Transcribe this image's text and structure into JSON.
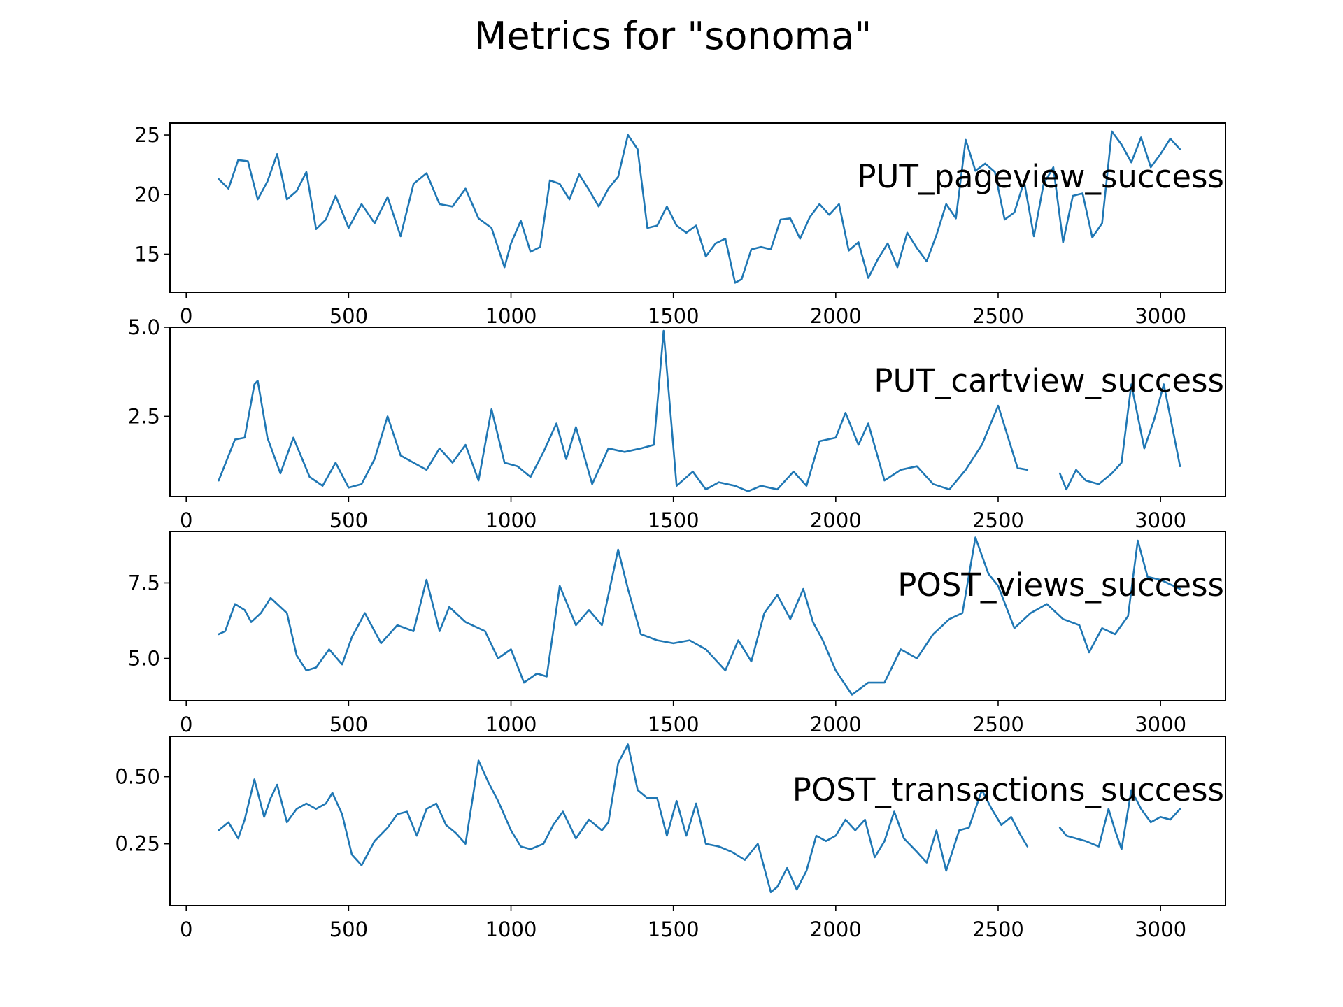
{
  "title": "Metrics for \"sonoma\"",
  "colors": {
    "line": "#1f77b4",
    "axes": "#000000",
    "background": "#ffffff"
  },
  "chart_data": [
    {
      "type": "line",
      "label": "PUT_pageview_success",
      "xlim": [
        -50,
        3200
      ],
      "ylim": [
        11.8,
        26.0
      ],
      "xticks": [
        0,
        500,
        1000,
        1500,
        2000,
        2500,
        3000
      ],
      "yticks": [
        15,
        20,
        25
      ],
      "ytick_labels": [
        "15",
        "20",
        "25"
      ],
      "grid": false,
      "series": [
        {
          "segments": [
            {
              "x": [
                100,
                130,
                160,
                190,
                220,
                250,
                280,
                310,
                340,
                370,
                400,
                430,
                460,
                500,
                540,
                580,
                620,
                660,
                700,
                740,
                780,
                820,
                860,
                900,
                940,
                980,
                1000,
                1030,
                1060,
                1090,
                1120,
                1150,
                1180,
                1210,
                1240,
                1270,
                1300,
                1330,
                1360,
                1390,
                1420,
                1450,
                1480,
                1510,
                1540,
                1570,
                1600,
                1630,
                1660,
                1690,
                1710,
                1740,
                1770,
                1800,
                1830,
                1860,
                1890,
                1920,
                1950,
                1980,
                2010,
                2040,
                2070,
                2100,
                2130,
                2160,
                2190,
                2220,
                2250,
                2280,
                2310,
                2340,
                2370,
                2400,
                2430,
                2460,
                2490,
                2520,
                2550,
                2580,
                2610,
                2640,
                2670,
                2700,
                2730,
                2760,
                2790,
                2820,
                2850,
                2880,
                2910,
                2940,
                2970,
                3000,
                3030,
                3060
              ],
              "y": [
                21.3,
                20.5,
                22.9,
                22.8,
                19.6,
                21.1,
                23.4,
                19.6,
                20.3,
                21.9,
                17.1,
                17.9,
                19.9,
                17.2,
                19.2,
                17.6,
                19.8,
                16.5,
                20.9,
                21.8,
                19.2,
                19.0,
                20.5,
                18.0,
                17.2,
                13.9,
                15.9,
                17.8,
                15.2,
                15.6,
                21.2,
                20.9,
                19.6,
                21.7,
                20.4,
                19.0,
                20.5,
                21.5,
                25.0,
                23.8,
                17.2,
                17.4,
                19.0,
                17.4,
                16.8,
                17.4,
                14.8,
                15.9,
                16.3,
                12.6,
                12.9,
                15.4,
                15.6,
                15.4,
                17.9,
                18.0,
                16.3,
                18.1,
                19.2,
                18.3,
                19.2,
                15.3,
                16.0,
                13.0,
                14.6,
                15.9,
                13.9,
                16.8,
                15.5,
                14.4,
                16.6,
                19.2,
                18.0,
                24.6,
                22.0,
                22.6,
                21.9,
                17.9,
                18.5,
                21.1,
                16.5,
                20.9,
                22.3,
                16.0,
                19.9,
                20.1,
                16.4,
                17.6,
                25.3,
                24.2,
                22.7,
                24.8,
                22.3,
                23.4,
                24.7,
                23.8
              ]
            }
          ]
        }
      ]
    },
    {
      "type": "line",
      "label": "PUT_cartview_success",
      "xlim": [
        -50,
        3200
      ],
      "ylim": [
        0.25,
        5.0
      ],
      "xticks": [
        0,
        500,
        1000,
        1500,
        2000,
        2500,
        3000
      ],
      "yticks": [
        2.5,
        5.0
      ],
      "ytick_labels": [
        "2.5",
        "5.0"
      ],
      "grid": false,
      "series": [
        {
          "segments": [
            {
              "x": [
                100,
                150,
                180,
                210,
                220,
                250,
                290,
                330,
                380,
                420,
                460,
                500,
                540,
                580,
                620,
                660,
                700,
                740,
                780,
                820,
                860,
                900,
                940,
                980,
                1020,
                1060,
                1100,
                1140,
                1170,
                1200,
                1250,
                1300,
                1350,
                1400,
                1440,
                1470,
                1510,
                1560,
                1600,
                1640,
                1690,
                1730,
                1770,
                1820,
                1870,
                1910,
                1950,
                2000,
                2030,
                2070,
                2100,
                2150,
                2200,
                2250,
                2300,
                2350,
                2400,
                2450,
                2500,
                2560,
                2590
              ],
              "y": [
                0.7,
                1.85,
                1.9,
                3.4,
                3.5,
                1.9,
                0.9,
                1.9,
                0.8,
                0.55,
                1.2,
                0.5,
                0.6,
                1.3,
                2.5,
                1.4,
                1.2,
                1.0,
                1.6,
                1.2,
                1.7,
                0.7,
                2.7,
                1.2,
                1.1,
                0.8,
                1.5,
                2.3,
                1.3,
                2.2,
                0.6,
                1.6,
                1.5,
                1.6,
                1.7,
                4.9,
                0.55,
                0.95,
                0.45,
                0.65,
                0.55,
                0.4,
                0.55,
                0.45,
                0.95,
                0.55,
                1.8,
                1.9,
                2.6,
                1.7,
                2.3,
                0.7,
                1.0,
                1.1,
                0.6,
                0.45,
                1.0,
                1.7,
                2.8,
                1.05,
                1.0
              ]
            },
            {
              "x": [
                2690,
                2710,
                2740,
                2770,
                2810,
                2850,
                2880,
                2910,
                2950,
                2980,
                3010,
                3060
              ],
              "y": [
                0.9,
                0.45,
                1.0,
                0.7,
                0.6,
                0.9,
                1.2,
                3.4,
                1.6,
                2.4,
                3.4,
                1.1
              ]
            }
          ]
        }
      ]
    },
    {
      "type": "line",
      "label": "POST_views_success",
      "xlim": [
        -50,
        3200
      ],
      "ylim": [
        3.6,
        9.2
      ],
      "xticks": [
        0,
        500,
        1000,
        1500,
        2000,
        2500,
        3000
      ],
      "yticks": [
        5.0,
        7.5
      ],
      "ytick_labels": [
        "5.0",
        "7.5"
      ],
      "grid": false,
      "series": [
        {
          "segments": [
            {
              "x": [
                100,
                120,
                150,
                180,
                200,
                230,
                260,
                280,
                310,
                340,
                370,
                400,
                440,
                480,
                510,
                550,
                600,
                650,
                700,
                740,
                780,
                810,
                860,
                920,
                960,
                1000,
                1040,
                1080,
                1110,
                1150,
                1200,
                1240,
                1280,
                1330,
                1360,
                1400,
                1450,
                1500,
                1550,
                1600,
                1660,
                1700,
                1740,
                1780,
                1820,
                1860,
                1900,
                1930,
                1960,
                2000,
                2050,
                2100,
                2150,
                2200,
                2250,
                2300,
                2350,
                2390,
                2430,
                2470,
                2500,
                2550,
                2600,
                2650,
                2700,
                2750,
                2780,
                2820,
                2860,
                2900,
                2930,
                2960,
                3000,
                3040,
                3060
              ],
              "y": [
                5.8,
                5.9,
                6.8,
                6.6,
                6.2,
                6.5,
                7.0,
                6.8,
                6.5,
                5.1,
                4.6,
                4.7,
                5.3,
                4.8,
                5.7,
                6.5,
                5.5,
                6.1,
                5.9,
                7.6,
                5.9,
                6.7,
                6.2,
                5.9,
                5.0,
                5.3,
                4.2,
                4.5,
                4.4,
                7.4,
                6.1,
                6.6,
                6.1,
                8.6,
                7.3,
                5.8,
                5.6,
                5.5,
                5.6,
                5.3,
                4.6,
                5.6,
                4.9,
                6.5,
                7.1,
                6.3,
                7.3,
                6.2,
                5.6,
                4.6,
                3.8,
                4.2,
                4.2,
                5.3,
                5.0,
                5.8,
                6.3,
                6.5,
                9.0,
                7.8,
                7.4,
                6.0,
                6.5,
                6.8,
                6.3,
                6.1,
                5.2,
                6.0,
                5.8,
                6.4,
                8.9,
                7.7,
                7.6,
                7.4,
                7.3
              ]
            }
          ]
        }
      ]
    },
    {
      "type": "line",
      "label": "POST_transactions_success",
      "xlim": [
        -50,
        3200
      ],
      "ylim": [
        0.02,
        0.65
      ],
      "xticks": [
        0,
        500,
        1000,
        1500,
        2000,
        2500,
        3000
      ],
      "yticks": [
        0.25,
        0.5
      ],
      "ytick_labels": [
        "0.25",
        "0.50"
      ],
      "grid": false,
      "series": [
        {
          "segments": [
            {
              "x": [
                100,
                130,
                160,
                180,
                210,
                240,
                260,
                280,
                310,
                340,
                370,
                400,
                430,
                450,
                480,
                510,
                540,
                580,
                620,
                650,
                680,
                710,
                740,
                770,
                800,
                830,
                860,
                900,
                930,
                960,
                1000,
                1030,
                1060,
                1100,
                1130,
                1160,
                1200,
                1240,
                1280,
                1300,
                1330,
                1360,
                1390,
                1420,
                1450,
                1480,
                1510,
                1540,
                1570,
                1600,
                1640,
                1680,
                1720,
                1760,
                1800,
                1820,
                1850,
                1880,
                1910,
                1940,
                1970,
                2000,
                2030,
                2060,
                2090,
                2120,
                2150,
                2180,
                2210,
                2250,
                2280,
                2310,
                2340,
                2380,
                2410,
                2450,
                2480,
                2510,
                2540,
                2570,
                2590
              ],
              "y": [
                0.3,
                0.33,
                0.27,
                0.34,
                0.49,
                0.35,
                0.42,
                0.47,
                0.33,
                0.38,
                0.4,
                0.38,
                0.4,
                0.44,
                0.36,
                0.21,
                0.17,
                0.26,
                0.31,
                0.36,
                0.37,
                0.28,
                0.38,
                0.4,
                0.32,
                0.29,
                0.25,
                0.56,
                0.48,
                0.41,
                0.3,
                0.24,
                0.23,
                0.25,
                0.32,
                0.37,
                0.27,
                0.34,
                0.3,
                0.33,
                0.55,
                0.62,
                0.45,
                0.42,
                0.42,
                0.28,
                0.41,
                0.28,
                0.4,
                0.25,
                0.24,
                0.22,
                0.19,
                0.25,
                0.07,
                0.09,
                0.16,
                0.08,
                0.15,
                0.28,
                0.26,
                0.28,
                0.34,
                0.3,
                0.34,
                0.2,
                0.26,
                0.37,
                0.27,
                0.22,
                0.18,
                0.3,
                0.15,
                0.3,
                0.31,
                0.45,
                0.38,
                0.32,
                0.35,
                0.28,
                0.24
              ]
            },
            {
              "x": [
                2690,
                2710,
                2740,
                2770,
                2810,
                2840,
                2860,
                2880,
                2910,
                2940,
                2970,
                3000,
                3030,
                3060
              ],
              "y": [
                0.31,
                0.28,
                0.27,
                0.26,
                0.24,
                0.38,
                0.3,
                0.23,
                0.45,
                0.38,
                0.33,
                0.35,
                0.34,
                0.38
              ]
            }
          ]
        }
      ]
    }
  ]
}
